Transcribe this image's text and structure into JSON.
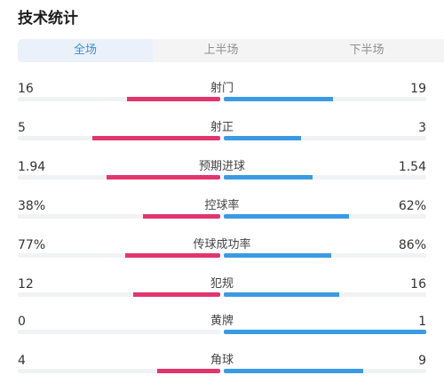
{
  "header": {
    "title": "技术统计"
  },
  "tabs": [
    {
      "label": "全场",
      "active": true
    },
    {
      "label": "上半场",
      "active": false
    },
    {
      "label": "下半场",
      "active": false
    }
  ],
  "colors": {
    "home_bar": "#e2356e",
    "away_bar": "#3a9be4",
    "active_tab_text": "#3a8fd8"
  },
  "stats": [
    {
      "label": "射门",
      "home": "16",
      "away": "19",
      "home_fill": 0.46,
      "away_fill": 0.54
    },
    {
      "label": "射正",
      "home": "5",
      "away": "3",
      "home_fill": 0.63,
      "away_fill": 0.38
    },
    {
      "label": "预期进球",
      "home": "1.94",
      "away": "1.54",
      "home_fill": 0.56,
      "away_fill": 0.44
    },
    {
      "label": "控球率",
      "home": "38%",
      "away": "62%",
      "home_fill": 0.38,
      "away_fill": 0.62
    },
    {
      "label": "传球成功率",
      "home": "77%",
      "away": "86%",
      "home_fill": 0.47,
      "away_fill": 0.53
    },
    {
      "label": "犯规",
      "home": "12",
      "away": "16",
      "home_fill": 0.43,
      "away_fill": 0.57
    },
    {
      "label": "黄牌",
      "home": "0",
      "away": "1",
      "home_fill": 0.0,
      "away_fill": 1.0
    },
    {
      "label": "角球",
      "home": "4",
      "away": "9",
      "home_fill": 0.31,
      "away_fill": 0.69
    }
  ]
}
